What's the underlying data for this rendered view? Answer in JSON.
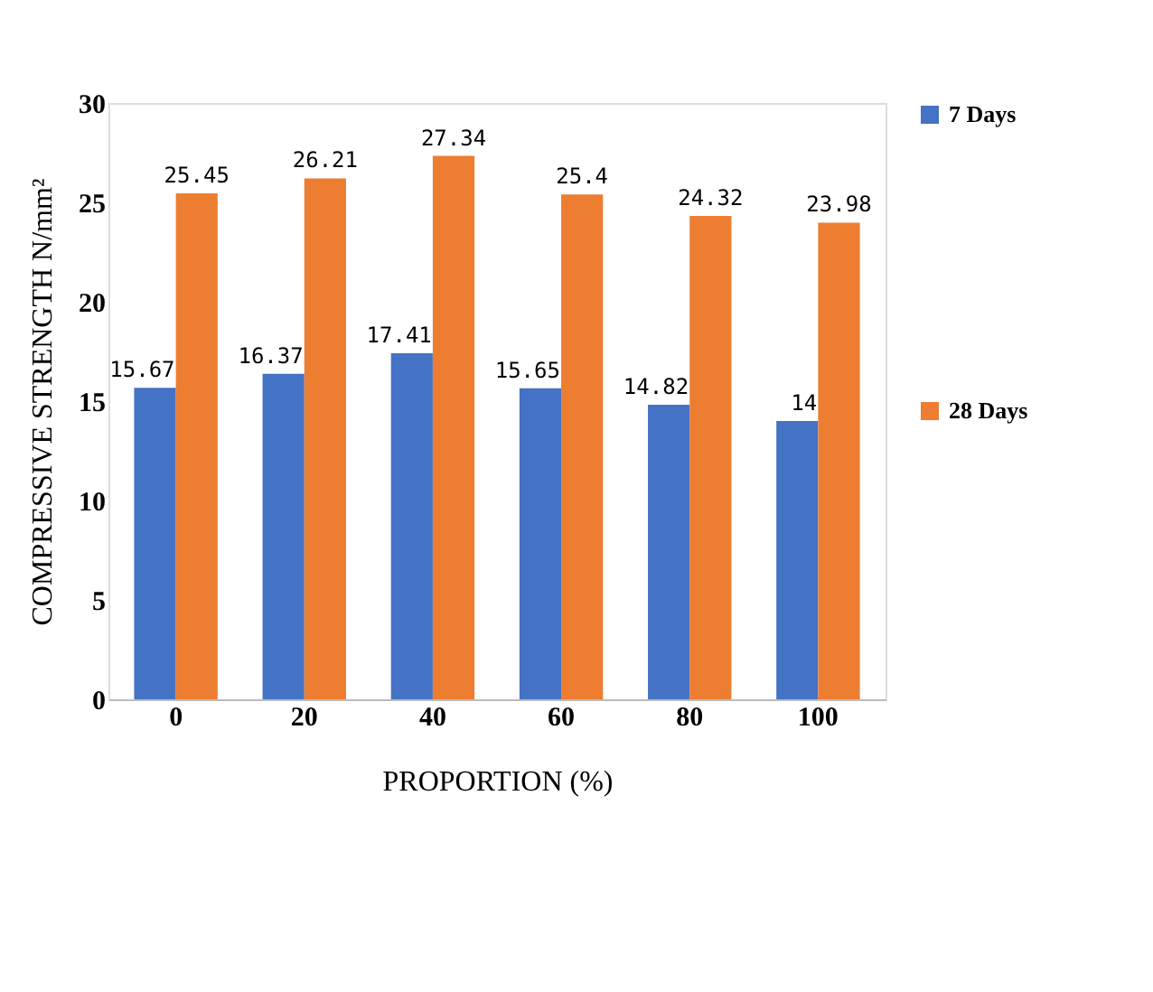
{
  "chart_data": {
    "type": "bar",
    "xlabel": "PROPORTION (%)",
    "ylabel": "COMPRESSIVE STRENGTH N/mm²",
    "categories": [
      "0",
      "20",
      "40",
      "60",
      "80",
      "100"
    ],
    "series": [
      {
        "name": "7 Days",
        "color": "#4472c4",
        "values": [
          15.67,
          16.37,
          17.41,
          15.65,
          14.82,
          14
        ]
      },
      {
        "name": "28 Days",
        "color": "#ed7d31",
        "values": [
          25.45,
          26.21,
          27.34,
          25.4,
          24.32,
          23.98
        ]
      }
    ],
    "ylim": [
      0,
      30
    ],
    "yticks": [
      0,
      5,
      10,
      15,
      20,
      25,
      30
    ],
    "grid": false,
    "legend": "right",
    "data_labels": true
  }
}
